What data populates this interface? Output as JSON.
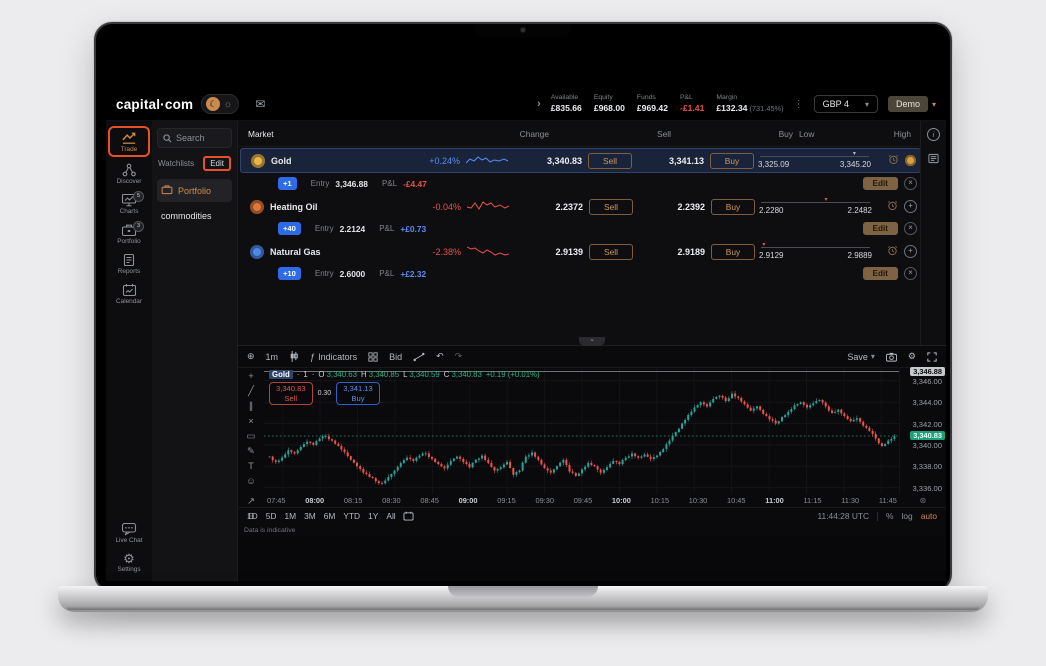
{
  "glyphs": {
    "chevron_down": "▾",
    "collapse": "⌄",
    "dots": "⋮",
    "expand": "›",
    "plus_circle": "⊕",
    "fx": "ƒ",
    "undo": "↶",
    "redo": "↷",
    "gear": "⚙",
    "scale_reset": "⊛",
    "info": "i",
    "search": "⌕",
    "plus": "+",
    "close": "×"
  },
  "topbar": {
    "logo": "capital·com",
    "theme": {
      "moon": "☾",
      "sun": "☼"
    },
    "mail_icon": "✉",
    "account": {
      "stats": [
        {
          "label": "Available",
          "value": "£835.66",
          "tone": "plain"
        },
        {
          "label": "Equity",
          "value": "£968.00",
          "tone": "plain"
        },
        {
          "label": "Funds",
          "value": "£969.42",
          "tone": "plain"
        },
        {
          "label": "P&L",
          "value": "-£1.41",
          "tone": "neg"
        },
        {
          "label": "Margin",
          "value": "£132.34",
          "suffix": "(731.45%)",
          "tone": "plain"
        }
      ],
      "currency": "GBP 4",
      "mode": "Demo"
    }
  },
  "sidebar": {
    "items": [
      {
        "label": "Trade",
        "icon": "trade-icon",
        "active": true,
        "annotated": true
      },
      {
        "label": "Discover",
        "icon": "discover-icon"
      },
      {
        "label": "Charts",
        "icon": "charts-icon",
        "badge": "5"
      },
      {
        "label": "Portfolio",
        "icon": "portfolio-icon",
        "badge": "3"
      },
      {
        "label": "Reports",
        "icon": "reports-icon"
      },
      {
        "label": "Calendar",
        "icon": "calendar-icon"
      }
    ],
    "bottom": [
      {
        "label": "Live Chat",
        "icon": "livechat-icon"
      },
      {
        "label": "Settings",
        "icon": "settings-icon"
      }
    ]
  },
  "watchlist": {
    "search_placeholder": "Search",
    "section": "Watchlists",
    "edit": "Edit",
    "items": [
      {
        "label": "Portfolio",
        "icon": "briefcase-icon",
        "active": true
      },
      {
        "label": "commodities"
      }
    ]
  },
  "market_table": {
    "columns": [
      "Market",
      "Change",
      "Sell",
      "Buy",
      "Low",
      "High"
    ],
    "sell_button": "Sell",
    "buy_button": "Buy",
    "edit_button": "Edit",
    "entry_label": "Entry",
    "pl_label": "P&L",
    "rows": [
      {
        "name": "Gold",
        "icon": "gold-icon",
        "icon_color": "#e8b64a",
        "selected": true,
        "change": "+0.24%",
        "dir": "up",
        "spark_color": "#5b8def",
        "sell": "3,340.83",
        "buy": "3,341.13",
        "low": "3,325.09",
        "high": "3,345.20",
        "marker_pos": 84,
        "marker_color": "#b9bec6",
        "right_icon": "amber",
        "position": {
          "qty": "+1",
          "entry": "3,346.88",
          "pl": "-£4.47",
          "pl_dir": "neg"
        }
      },
      {
        "name": "Heating Oil",
        "icon": "heating-oil-icon",
        "icon_color": "#e0763b",
        "selected": false,
        "change": "-0.04%",
        "dir": "down",
        "spark_color": "#e5534b",
        "sell": "2.2372",
        "buy": "2.2392",
        "low": "2.2280",
        "high": "2.2482",
        "marker_pos": 58,
        "marker_color": "#e5534b",
        "right_icon": "plus",
        "position": {
          "qty": "+40",
          "entry": "2.2124",
          "pl": "+£0.73",
          "pl_dir": "pos"
        }
      },
      {
        "name": "Natural Gas",
        "icon": "natural-gas-icon",
        "icon_color": "#4f86e8",
        "selected": false,
        "change": "-2.38%",
        "dir": "down",
        "spark_color": "#e5534b",
        "sell": "2.9139",
        "buy": "2.9189",
        "low": "2.9129",
        "high": "2.9889",
        "marker_pos": 3,
        "marker_color": "#e5534b",
        "right_icon": "plus",
        "position": {
          "qty": "+10",
          "entry": "2.6000",
          "pl": "+£2.32",
          "pl_dir": "pos"
        }
      }
    ]
  },
  "chart": {
    "toolbar": {
      "interval": "1m",
      "indicators": "Indicators",
      "bid": "Bid",
      "save": "Save"
    },
    "legend": {
      "symbol": "Gold",
      "sep": "·",
      "interval": "1",
      "o_label": "O",
      "o": "3,340.63",
      "h_label": "H",
      "h": "3,340.85",
      "l_label": "L",
      "l": "3,340.59",
      "c_label": "C",
      "c": "3,340.83",
      "change": "+0.19 (+0.01%)"
    },
    "orders": {
      "sell_price": "3,340.83",
      "sell_label": "Sell",
      "spread": "0.30",
      "buy_price": "3,341.13",
      "buy_label": "Buy"
    },
    "price_axis": {
      "position_tag": "3,346.88",
      "current_tag": "3,340.83",
      "ticks": [
        "3,346.00",
        "3,344.00",
        "3,342.00",
        "3,340.00",
        "3,338.00",
        "3,336.00"
      ]
    },
    "time_ticks": [
      "07:45",
      "08:00",
      "08:15",
      "08:30",
      "08:45",
      "09:00",
      "09:15",
      "09:30",
      "09:45",
      "10:00",
      "10:15",
      "10:30",
      "10:45",
      "11:00",
      "11:15",
      "11:30",
      "11:45"
    ],
    "bold_hours": [
      "08:00",
      "09:00",
      "10:00",
      "11:00"
    ],
    "ranges": [
      "1D",
      "5D",
      "1M",
      "3M",
      "6M",
      "YTD",
      "1Y",
      "All"
    ],
    "status": {
      "clock": "11:44:28 UTC",
      "percent": "%",
      "log": "log",
      "auto": "auto"
    },
    "footnote": "Data is indicative",
    "tools": [
      {
        "name": "crosshair",
        "glyph": "+"
      },
      {
        "name": "trendline",
        "glyph": "╱"
      },
      {
        "name": "channel",
        "glyph": "∥"
      },
      {
        "name": "xabcd-pattern",
        "glyph": "×"
      },
      {
        "name": "position-tool",
        "glyph": "▭"
      },
      {
        "name": "brush",
        "glyph": "✎"
      },
      {
        "name": "text",
        "glyph": "T"
      },
      {
        "name": "emoji",
        "glyph": "☺"
      }
    ],
    "tools_bottom": [
      {
        "name": "measure",
        "glyph": "↗"
      },
      {
        "name": "magnet",
        "glyph": "⊙"
      }
    ]
  },
  "chart_data": {
    "type": "candlestick",
    "symbol": "Gold",
    "interval": "1m",
    "x_start": "07:32",
    "x_end": "12:00",
    "ylim": [
      3335.4,
      3347.2
    ],
    "current_price": 3340.83,
    "position_entry_price": 3346.88,
    "up_color": "#26a69a",
    "down_color": "#ef5350",
    "closes": [
      3338.9,
      3338.4,
      3338.8,
      3339.5,
      3339.2,
      3339.8,
      3340.3,
      3340.0,
      3340.6,
      3340.8,
      3340.4,
      3339.9,
      3339.3,
      3338.6,
      3338.0,
      3337.4,
      3337.0,
      3336.6,
      3336.4,
      3337.0,
      3337.6,
      3338.3,
      3338.8,
      3338.5,
      3339.0,
      3339.2,
      3338.7,
      3338.2,
      3337.8,
      3338.5,
      3338.9,
      3338.4,
      3337.9,
      3338.6,
      3339.0,
      3338.3,
      3337.6,
      3337.9,
      3338.4,
      3337.2,
      3337.6,
      3338.9,
      3339.3,
      3338.6,
      3337.8,
      3337.4,
      3338.0,
      3338.6,
      3337.5,
      3337.1,
      3337.7,
      3338.3,
      3338.0,
      3337.4,
      3337.9,
      3338.5,
      3338.2,
      3338.8,
      3339.2,
      3338.8,
      3339.1,
      3338.7,
      3339.0,
      3339.6,
      3340.4,
      3341.2,
      3342.0,
      3342.8,
      3343.5,
      3344.0,
      3343.6,
      3344.3,
      3344.6,
      3344.1,
      3344.8,
      3344.4,
      3343.8,
      3343.2,
      3343.6,
      3342.9,
      3342.4,
      3342.0,
      3342.6,
      3343.1,
      3343.7,
      3344.0,
      3343.5,
      3343.9,
      3344.2,
      3343.6,
      3343.0,
      3343.3,
      3342.7,
      3342.2,
      3342.5,
      3341.8,
      3341.3,
      3340.6,
      3339.9,
      3340.4,
      3340.8
    ]
  }
}
